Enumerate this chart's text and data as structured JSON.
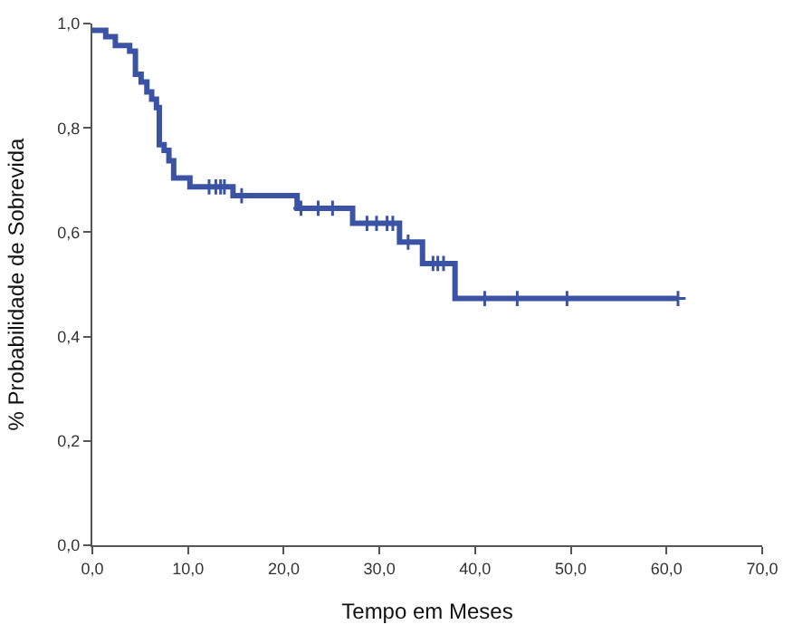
{
  "chart_data": {
    "type": "step",
    "xlabel": "Tempo em Meses",
    "ylabel": "% Probabilidade de Sobrevida",
    "xlim": [
      0,
      70
    ],
    "ylim": [
      0,
      1
    ],
    "xticks": [
      {
        "value": 0,
        "label": "0,0"
      },
      {
        "value": 10,
        "label": "10,0"
      },
      {
        "value": 20,
        "label": "20,0"
      },
      {
        "value": 30,
        "label": "30,0"
      },
      {
        "value": 40,
        "label": "40,0"
      },
      {
        "value": 50,
        "label": "50,0"
      },
      {
        "value": 60,
        "label": "60,0"
      },
      {
        "value": 70,
        "label": "70,0"
      }
    ],
    "yticks": [
      {
        "value": 0,
        "label": "0,0"
      },
      {
        "value": 0.2,
        "label": "0,2"
      },
      {
        "value": 0.4,
        "label": "0,4"
      },
      {
        "value": 0.6,
        "label": "0,6"
      },
      {
        "value": 0.8,
        "label": "0,8"
      },
      {
        "value": 1,
        "label": "1,0"
      }
    ],
    "series": [
      {
        "color": "#3a53a4",
        "x": [
          0,
          1.4,
          2.4,
          3.9,
          4.5,
          5.1,
          5.7,
          6.2,
          6.7,
          7.0,
          7.5,
          8.0,
          8.5,
          10.2,
          14.7,
          21.4,
          27.2,
          32.1,
          34.5,
          37.9,
          61.2
        ],
        "values": [
          0.987,
          0.975,
          0.958,
          0.947,
          0.903,
          0.888,
          0.869,
          0.855,
          0.839,
          0.768,
          0.757,
          0.737,
          0.704,
          0.687,
          0.67,
          0.646,
          0.617,
          0.581,
          0.54,
          0.473,
          0.473
        ]
      },
      {
        "type": "scatter",
        "color": "#3a53a4",
        "marker": "cross",
        "x": [
          12.2,
          12.9,
          13.4,
          13.8,
          15.6,
          21.8,
          23.6,
          25.1,
          28.7,
          29.7,
          30.8,
          31.4,
          33.0,
          35.6,
          36.1,
          36.7,
          41.0,
          44.4,
          49.6,
          61.2
        ],
        "values": [
          0.687,
          0.687,
          0.687,
          0.687,
          0.67,
          0.646,
          0.646,
          0.646,
          0.617,
          0.617,
          0.617,
          0.617,
          0.581,
          0.54,
          0.54,
          0.54,
          0.473,
          0.473,
          0.473,
          0.473
        ]
      }
    ]
  }
}
